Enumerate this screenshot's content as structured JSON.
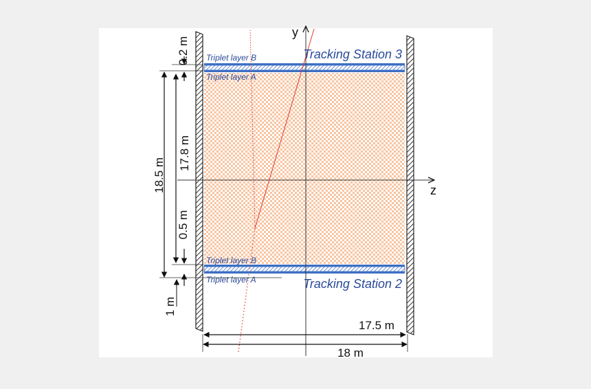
{
  "axes": {
    "y_label": "y",
    "z_label": "z"
  },
  "stations": {
    "top": {
      "name": "Tracking Station 3",
      "layer_b": "Triplet layer B",
      "layer_a": "Triplet layer A"
    },
    "bottom": {
      "name": "Tracking Station 2",
      "layer_b": "Triplet layer B",
      "layer_a": "Triplet layer A"
    }
  },
  "dimensions": {
    "top_gap": "0.2 m",
    "inner_height": "17.8 m",
    "outer_height": "18.5 m",
    "layer_spacing": "0.5 m",
    "bottom_gap": "1 m",
    "inner_width": "17.5 m",
    "outer_width": "18 m"
  },
  "colors": {
    "volume_fill": "#f7c9a8",
    "layer_blue": "#3d6fc4",
    "wall": "#333333",
    "track_red": "#e03b2a"
  }
}
